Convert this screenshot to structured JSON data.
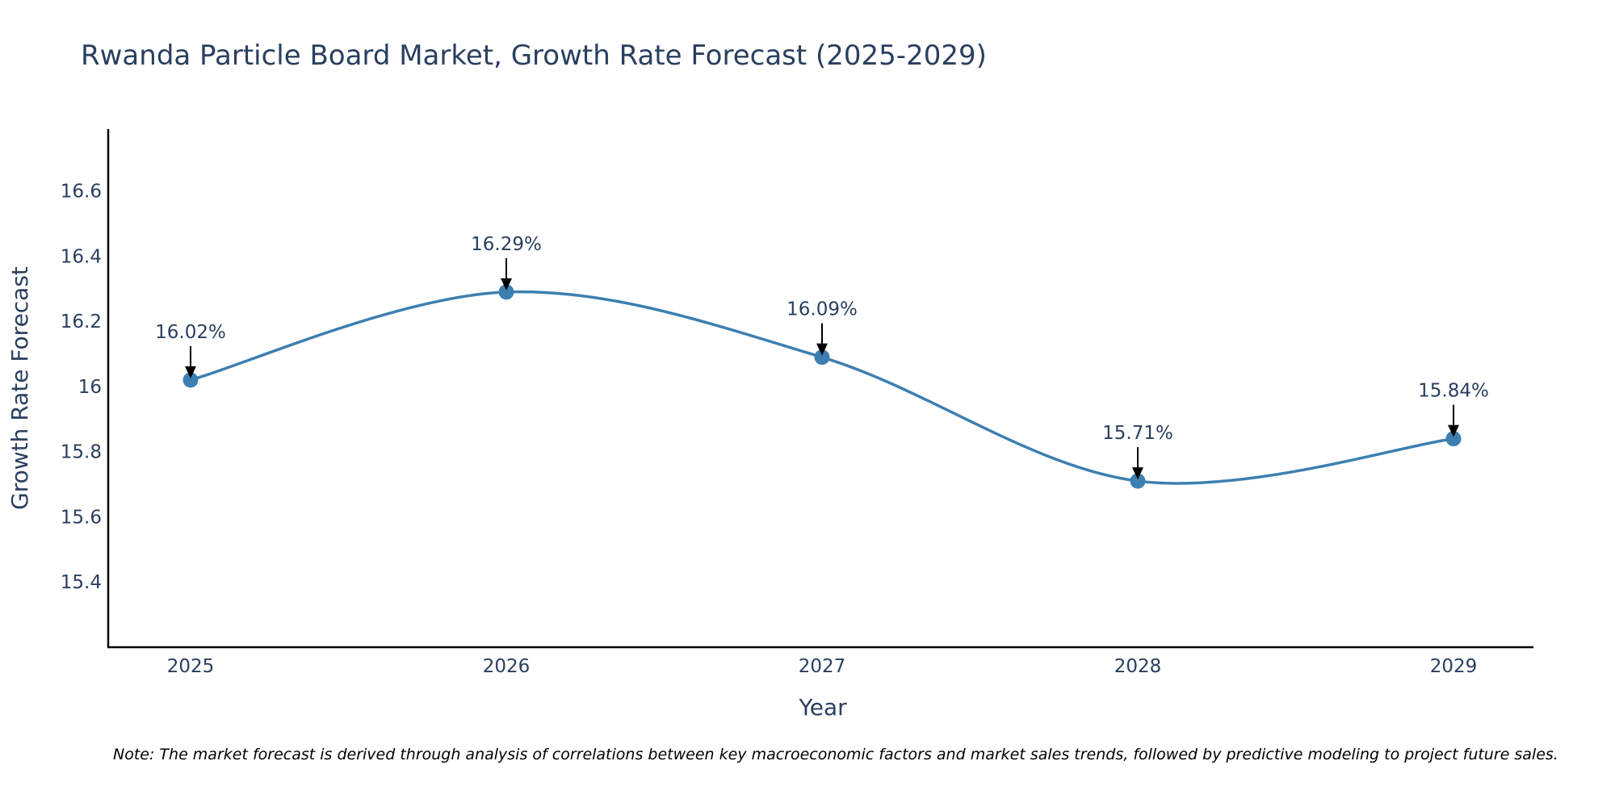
{
  "chart_data": {
    "type": "line",
    "title": "Rwanda Particle Board Market, Growth Rate Forecast (2025-2029)",
    "xlabel": "Year",
    "ylabel": "Growth Rate Forecast",
    "categories": [
      "2025",
      "2026",
      "2027",
      "2028",
      "2029"
    ],
    "series": [
      {
        "name": "Growth Rate Forecast",
        "values": [
          16.02,
          16.29,
          16.09,
          15.71,
          15.84
        ],
        "color": "#3d7fb0"
      }
    ],
    "data_labels": [
      "16.02%",
      "16.29%",
      "16.09%",
      "15.71%",
      "15.84%"
    ],
    "y_ticks": [
      15.4,
      15.6,
      15.8,
      16,
      16.2,
      16.4,
      16.6
    ],
    "y_tick_labels": [
      "15.4",
      "15.6",
      "15.8",
      "16",
      "16.2",
      "16.4",
      "16.6"
    ],
    "ylim": [
      15.2,
      16.79
    ],
    "line_shape": "spline",
    "grid": false,
    "note": "Note: The market forecast is derived through analysis of correlations between key macroeconomic factors and market sales trends, followed by predictive modeling to project future sales."
  },
  "colors": {
    "line": "#3d7fb0",
    "marker": "#3d7fb0",
    "axis": "#000000",
    "text": "#2a3f5f",
    "arrow": "#000000"
  }
}
